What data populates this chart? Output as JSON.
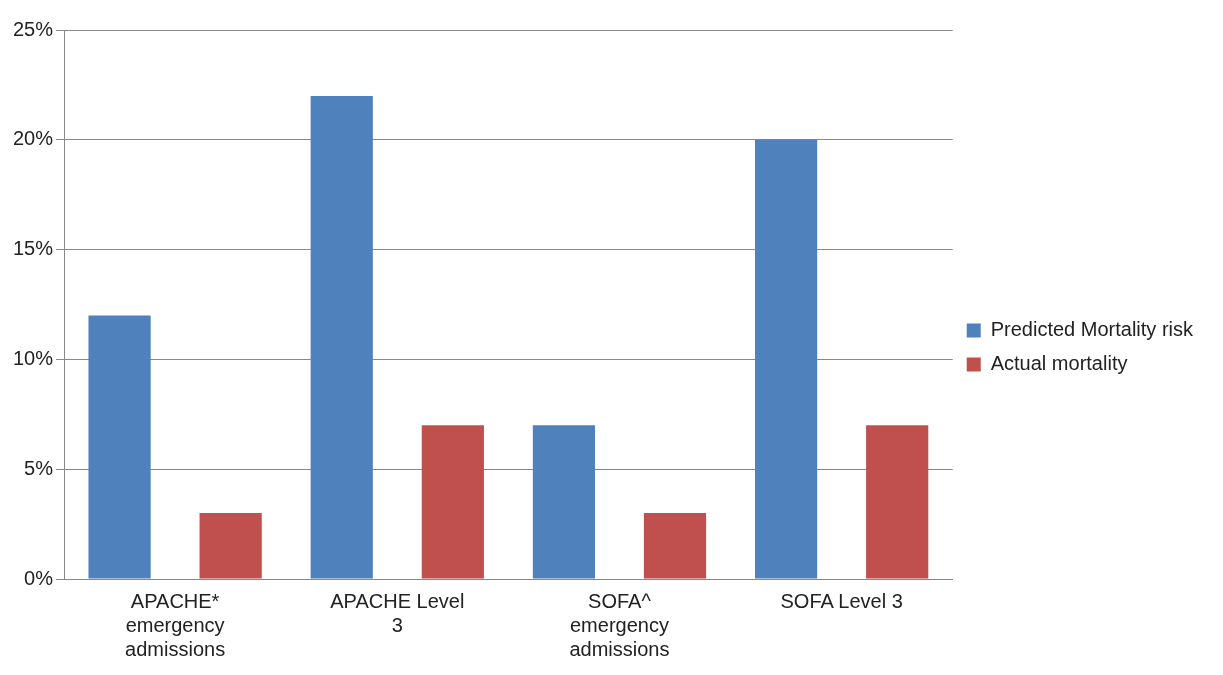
{
  "chart_data": {
    "type": "bar",
    "categories": [
      "APACHE* emergency admissions",
      "APACHE Level 3",
      "SOFA^ emergency admissions",
      "SOFA Level 3"
    ],
    "series": [
      {
        "name": "Predicted Mortality risk",
        "color": "#4f81bd",
        "values": [
          12,
          22,
          7,
          20
        ]
      },
      {
        "name": "Actual mortality",
        "color": "#c0504d",
        "values": [
          3,
          7,
          3,
          7
        ]
      }
    ],
    "ylim": [
      0,
      25
    ],
    "yticks": [
      {
        "value": 0,
        "label": "0%"
      },
      {
        "value": 5,
        "label": "5%"
      },
      {
        "value": 10,
        "label": "10%"
      },
      {
        "value": 15,
        "label": "15%"
      },
      {
        "value": 20,
        "label": "20%"
      },
      {
        "value": 25,
        "label": "25%"
      }
    ],
    "grid": "y",
    "legend": "right"
  }
}
